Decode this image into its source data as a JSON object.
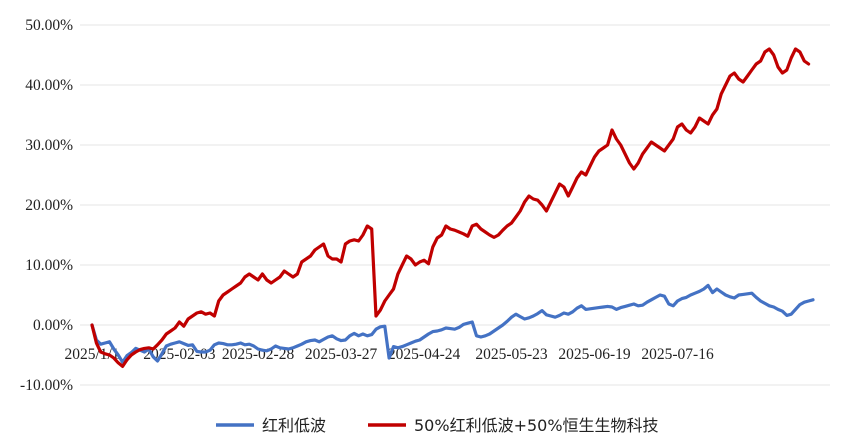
{
  "chart_data": {
    "type": "line",
    "title": "",
    "xlabel": "",
    "ylabel": "",
    "ylim": [
      -10,
      50
    ],
    "yticks": [
      "50.00%",
      "40.00%",
      "30.00%",
      "20.00%",
      "10.00%",
      "0.00%",
      "-10.00%"
    ],
    "ytick_values": [
      50,
      40,
      30,
      20,
      10,
      0,
      -10
    ],
    "xticks": [
      "2025/1/1",
      "2025-02-03",
      "2025-02-28",
      "2025-03-27",
      "2025-04-24",
      "2025-05-23",
      "2025-06-19",
      "2025-07-16"
    ],
    "xtick_index": [
      0,
      20,
      38,
      57,
      76,
      96,
      115,
      134
    ],
    "grid": true,
    "legend_position": "bottom",
    "series": [
      {
        "name": "红利低波",
        "color": "#4472C4",
        "values": [
          0,
          -2.5,
          -3.2,
          -3.0,
          -2.8,
          -4.0,
          -5.0,
          -6.2,
          -5.1,
          -4.6,
          -3.9,
          -4.2,
          -4.5,
          -4.0,
          -5.3,
          -6.0,
          -4.8,
          -3.5,
          -3.2,
          -3.0,
          -2.8,
          -3.1,
          -3.4,
          -3.3,
          -4.4,
          -4.5,
          -4.5,
          -4.2,
          -3.3,
          -3.0,
          -3.1,
          -3.3,
          -3.3,
          -3.2,
          -3.0,
          -3.3,
          -3.2,
          -3.5,
          -4.0,
          -4.2,
          -4.3,
          -4.0,
          -3.5,
          -3.8,
          -3.9,
          -4.0,
          -3.8,
          -3.5,
          -3.2,
          -2.8,
          -2.6,
          -2.5,
          -2.8,
          -2.4,
          -2.0,
          -1.8,
          -2.3,
          -2.6,
          -2.5,
          -1.8,
          -1.4,
          -1.8,
          -1.5,
          -1.8,
          -1.6,
          -0.7,
          -0.3,
          -0.2,
          -5.5,
          -3.6,
          -3.8,
          -3.6,
          -3.3,
          -3.0,
          -2.7,
          -2.5,
          -2.0,
          -1.5,
          -1.1,
          -1.0,
          -0.8,
          -0.5,
          -0.6,
          -0.7,
          -0.4,
          0.1,
          0.3,
          0.5,
          -1.8,
          -2.0,
          -1.8,
          -1.5,
          -1.0,
          -0.5,
          0.0,
          0.6,
          1.3,
          1.8,
          1.4,
          1.0,
          1.2,
          1.5,
          1.9,
          2.4,
          1.7,
          1.5,
          1.3,
          1.6,
          2.0,
          1.8,
          2.2,
          2.8,
          3.2,
          2.6,
          2.7,
          2.8,
          2.9,
          3.0,
          3.1,
          3.0,
          2.6,
          2.9,
          3.1,
          3.3,
          3.5,
          3.2,
          3.3,
          3.8,
          4.2,
          4.6,
          5.0,
          4.8,
          3.5,
          3.2,
          4.0,
          4.4,
          4.6,
          5.0,
          5.3,
          5.6,
          6.0,
          6.6,
          5.4,
          6.0,
          5.5,
          5.0,
          4.7,
          4.5,
          5.0,
          5.1,
          5.2,
          5.3,
          4.6,
          4.0,
          3.6,
          3.2,
          3.0,
          2.6,
          2.3,
          1.6,
          1.8,
          2.6,
          3.4,
          3.8,
          4.0,
          4.2
        ]
      },
      {
        "name": "50%红利低波+50%恒生生物科技",
        "color": "#C00000",
        "values": [
          0,
          -3.0,
          -4.5,
          -4.8,
          -5.0,
          -5.5,
          -6.3,
          -6.9,
          -5.8,
          -5.0,
          -4.5,
          -4.1,
          -3.9,
          -3.8,
          -4.0,
          -3.3,
          -2.5,
          -1.5,
          -1.0,
          -0.5,
          0.5,
          -0.2,
          1.0,
          1.5,
          2.0,
          2.2,
          1.8,
          2.0,
          1.5,
          4.0,
          5.0,
          5.5,
          6.0,
          6.5,
          7.0,
          8.0,
          8.5,
          8.0,
          7.5,
          8.5,
          7.5,
          7.0,
          7.5,
          8.0,
          9.0,
          8.5,
          8.0,
          8.5,
          10.5,
          11.0,
          11.5,
          12.5,
          13.0,
          13.5,
          11.5,
          11.0,
          11.0,
          10.5,
          13.5,
          14.0,
          14.2,
          14.0,
          15.0,
          16.5,
          16.0,
          1.5,
          2.5,
          4.0,
          5.0,
          6.0,
          8.5,
          10.0,
          11.5,
          11.0,
          10.0,
          10.5,
          10.8,
          10.2,
          13.0,
          14.5,
          15.0,
          16.5,
          16.0,
          15.8,
          15.5,
          15.2,
          14.8,
          16.5,
          16.8,
          16.0,
          15.5,
          15.0,
          14.6,
          15.0,
          15.8,
          16.5,
          17.0,
          18.0,
          19.0,
          20.5,
          21.5,
          21.0,
          20.8,
          20.0,
          19.0,
          20.5,
          22.0,
          23.5,
          23.0,
          21.5,
          23.0,
          24.5,
          25.5,
          25.0,
          26.5,
          28.0,
          29.0,
          29.5,
          30.0,
          32.5,
          31.0,
          30.0,
          28.5,
          27.0,
          26.0,
          27.0,
          28.5,
          29.5,
          30.5,
          30.0,
          29.5,
          29.0,
          30.0,
          31.0,
          33.0,
          33.5,
          32.5,
          32.0,
          33.0,
          34.5,
          34.0,
          33.5,
          35.0,
          36.0,
          38.5,
          40.0,
          41.5,
          42.0,
          41.0,
          40.5,
          41.5,
          42.5,
          43.5,
          44.0,
          45.5,
          46.0,
          45.0,
          43.0,
          42.0,
          42.5,
          44.5,
          46.0,
          45.5,
          44.0,
          43.5
        ]
      }
    ]
  }
}
